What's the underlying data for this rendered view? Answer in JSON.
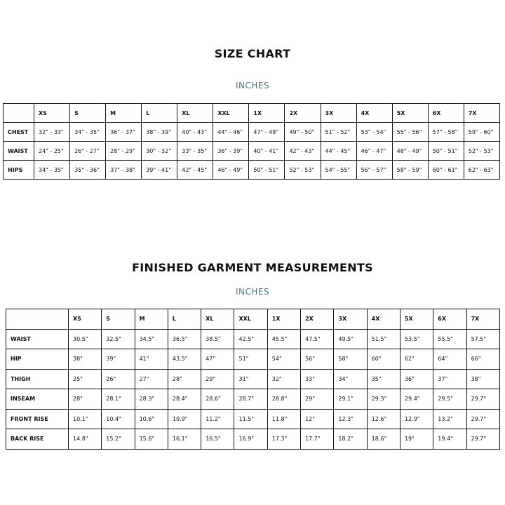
{
  "size_chart": {
    "title": "SIZE CHART",
    "unit": "INCHES",
    "columns": [
      "XS",
      "S",
      "M",
      "L",
      "XL",
      "XXL",
      "1X",
      "2X",
      "3X",
      "4X",
      "5X",
      "6X",
      "7X"
    ],
    "rows": [
      {
        "label": "CHEST",
        "cells": [
          "32\" - 33\"",
          "34\" - 35\"",
          "36\" - 37\"",
          "38\" - 39\"",
          "40\" - 43\"",
          "44\" - 46\"",
          "47\" - 48\"",
          "49\" - 50\"",
          "51\" - 52\"",
          "53\" - 54\"",
          "55\" - 56\"",
          "57\" - 58\"",
          "59\" - 60\""
        ]
      },
      {
        "label": "WAIST",
        "cells": [
          "24\" - 25\"",
          "26\" - 27\"",
          "28\" - 29\"",
          "30\" - 32\"",
          "33\" - 35\"",
          "36\" - 39\"",
          "40\" - 41\"",
          "42\" - 43\"",
          "44\" - 45\"",
          "46\" - 47\"",
          "48\" - 49\"",
          "50\" - 51\"",
          "52\" - 53\""
        ]
      },
      {
        "label": "HIPS",
        "cells": [
          "34\" - 35\"",
          "35\" - 36\"",
          "37\" - 38\"",
          "39\" - 41\"",
          "42\" - 45\"",
          "46\" - 49\"",
          "50\" - 51\"",
          "52\" - 53\"",
          "54\" - 55\"",
          "56\" - 57\"",
          "58\" - 59\"",
          "60\" - 61\"",
          "62\" - 63\""
        ]
      }
    ]
  },
  "garment_chart": {
    "title": "FINISHED GARMENT MEASUREMENTS",
    "unit": "INCHES",
    "columns": [
      "XS",
      "S",
      "M",
      "L",
      "XL",
      "XXL",
      "1X",
      "2X",
      "3X",
      "4X",
      "5X",
      "6X",
      "7X"
    ],
    "rows": [
      {
        "label": "WAIST",
        "cells": [
          "30.5\"",
          "32.5\"",
          "34.5\"",
          "36.5\"",
          "38.5\"",
          "42.5\"",
          "45.5\"",
          "47.5\"",
          "49.5\"",
          "51.5\"",
          "53.5\"",
          "55.5\"",
          "57.5\""
        ]
      },
      {
        "label": "HIP",
        "cells": [
          "38\"",
          "39\"",
          "41\"",
          "43.5\"",
          "47\"",
          "51\"",
          "54\"",
          "56\"",
          "58\"",
          "60\"",
          "62\"",
          "64\"",
          "66\""
        ]
      },
      {
        "label": "THIGH",
        "cells": [
          "25\"",
          "26\"",
          "27\"",
          "28\"",
          "29\"",
          "31\"",
          "32\"",
          "33\"",
          "34\"",
          "35\"",
          "36\"",
          "37\"",
          "38\""
        ]
      },
      {
        "label": "INSEAM",
        "cells": [
          "28\"",
          "28.1\"",
          "28.3\"",
          "28.4\"",
          "28.6\"",
          "28.7\"",
          "28.8\"",
          "29\"",
          "29.1\"",
          "29.3\"",
          "29.4\"",
          "29.5\"",
          "29.7\""
        ]
      },
      {
        "label": "FRONT RISE",
        "cells": [
          "10.1\"",
          "10.4\"",
          "10.6\"",
          "10.9\"",
          "11.2\"",
          "11.5\"",
          "11.8\"",
          "12\"",
          "12.3\"",
          "12.6\"",
          "12.9\"",
          "13.2\"",
          "29.7\""
        ]
      },
      {
        "label": "BACK RISE",
        "cells": [
          "14.8\"",
          "15.2\"",
          "15.6\"",
          "16.1\"",
          "16.5\"",
          "16.9\"",
          "17.3\"",
          "17.7\"",
          "18.2\"",
          "18.6\"",
          "19\"",
          "19.4\"",
          "29.7\""
        ]
      }
    ]
  }
}
